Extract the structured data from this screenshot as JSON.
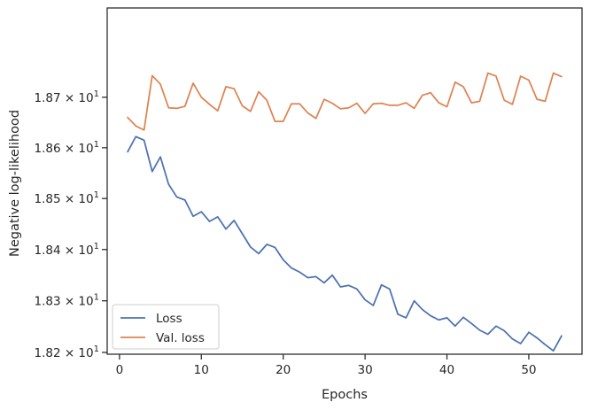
{
  "chart_data": {
    "type": "line",
    "title": "",
    "xlabel": "Epochs",
    "ylabel": "Negative log-likelihood",
    "x_range": [
      -1.5,
      56.5
    ],
    "y_range": [
      18.1965,
      18.8782
    ],
    "y_scale": "log",
    "grid": false,
    "legend_position": "bottom-left",
    "x_ticks": [
      0,
      10,
      20,
      30,
      40,
      50
    ],
    "x_tick_labels": [
      "0",
      "10",
      "20",
      "30",
      "40",
      "50"
    ],
    "y_ticks": [
      18.2,
      18.3,
      18.4,
      18.5,
      18.6,
      18.7
    ],
    "y_tick_mantissas": [
      "1.82",
      "1.83",
      "1.84",
      "1.85",
      "1.86",
      "1.87"
    ],
    "y_tick_base": "10",
    "y_tick_exponent": "1",
    "x": [
      1,
      2,
      3,
      4,
      5,
      6,
      7,
      8,
      9,
      10,
      11,
      12,
      13,
      14,
      15,
      16,
      17,
      18,
      19,
      20,
      21,
      22,
      23,
      24,
      25,
      26,
      27,
      28,
      29,
      30,
      31,
      32,
      33,
      34,
      35,
      36,
      37,
      38,
      39,
      40,
      41,
      42,
      43,
      44,
      45,
      46,
      47,
      48,
      49,
      50,
      51,
      52,
      53,
      54
    ],
    "series": [
      {
        "name": "Loss",
        "color": "#4c72b0",
        "values": [
          18.592,
          18.622,
          18.615,
          18.553,
          18.582,
          18.528,
          18.503,
          18.497,
          18.465,
          18.474,
          18.455,
          18.464,
          18.44,
          18.457,
          18.431,
          18.405,
          18.392,
          18.41,
          18.404,
          18.38,
          18.364,
          18.356,
          18.345,
          18.347,
          18.335,
          18.35,
          18.327,
          18.33,
          18.323,
          18.302,
          18.291,
          18.331,
          18.323,
          18.274,
          18.267,
          18.3,
          18.283,
          18.271,
          18.263,
          18.267,
          18.251,
          18.268,
          18.256,
          18.243,
          18.235,
          18.251,
          18.242,
          18.226,
          18.217,
          18.239,
          18.228,
          18.215,
          18.203,
          18.232
        ]
      },
      {
        "name": "Val. loss",
        "color": "#dd8452",
        "values": [
          18.66,
          18.643,
          18.635,
          18.743,
          18.726,
          18.679,
          18.678,
          18.682,
          18.728,
          18.7,
          18.686,
          18.673,
          18.721,
          18.717,
          18.683,
          18.672,
          18.711,
          18.694,
          18.652,
          18.652,
          18.687,
          18.687,
          18.669,
          18.658,
          18.696,
          18.688,
          18.677,
          18.679,
          18.688,
          18.668,
          18.687,
          18.688,
          18.684,
          18.684,
          18.689,
          18.678,
          18.704,
          18.709,
          18.689,
          18.681,
          18.73,
          18.721,
          18.689,
          18.692,
          18.748,
          18.742,
          18.694,
          18.686,
          18.742,
          18.734,
          18.696,
          18.692,
          18.748,
          18.741
        ]
      }
    ]
  }
}
